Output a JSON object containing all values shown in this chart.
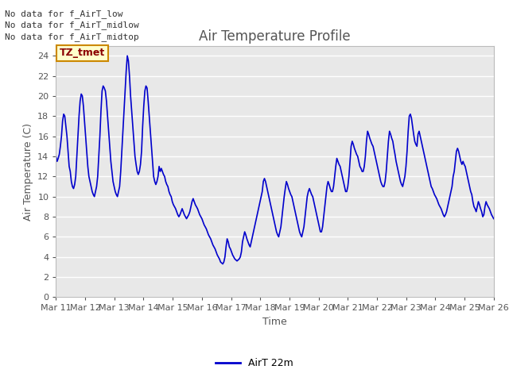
{
  "title": "Air Temperature Profile",
  "xlabel": "Time",
  "ylabel": "Air Temperature (C)",
  "line_color": "#0000cc",
  "line_label": "AirT 22m",
  "background_color": "#ffffff",
  "plot_bg_color": "#e8e8e8",
  "grid_color": "#ffffff",
  "ylim": [
    0,
    25
  ],
  "yticks": [
    0,
    2,
    4,
    6,
    8,
    10,
    12,
    14,
    16,
    18,
    20,
    22,
    24
  ],
  "annotations_text": [
    "No data for f_AirT_low",
    "No data for f_AirT_midlow",
    "No data for f_AirT_midtop"
  ],
  "tooltip_text": "TZ_tmet",
  "x_tick_labels": [
    "Mar 11",
    "Mar 12",
    "Mar 13",
    "Mar 14",
    "Mar 15",
    "Mar 16",
    "Mar 17",
    "Mar 18",
    "Mar 19",
    "Mar 20",
    "Mar 21",
    "Mar 22",
    "Mar 23",
    "Mar 24",
    "Mar 25",
    "Mar 26"
  ],
  "temperatures": [
    14.0,
    13.5,
    13.8,
    14.2,
    15.0,
    16.0,
    17.5,
    18.2,
    18.0,
    17.0,
    16.0,
    14.5,
    13.0,
    12.5,
    11.5,
    11.0,
    10.8,
    11.2,
    12.0,
    14.0,
    16.0,
    18.0,
    19.5,
    20.2,
    20.0,
    19.0,
    17.5,
    16.0,
    14.5,
    13.0,
    12.0,
    11.5,
    11.0,
    10.5,
    10.2,
    10.0,
    10.5,
    11.0,
    12.0,
    14.0,
    16.0,
    18.5,
    20.5,
    21.0,
    20.8,
    20.5,
    19.5,
    18.0,
    16.5,
    15.0,
    13.5,
    12.5,
    11.5,
    11.0,
    10.5,
    10.2,
    10.0,
    10.5,
    11.0,
    12.5,
    14.5,
    16.5,
    18.5,
    20.5,
    22.5,
    24.0,
    23.5,
    22.0,
    20.0,
    18.5,
    17.0,
    15.5,
    14.0,
    13.2,
    12.5,
    12.2,
    12.5,
    13.2,
    14.5,
    17.0,
    19.0,
    20.5,
    21.0,
    20.8,
    19.5,
    18.0,
    16.5,
    15.0,
    13.5,
    12.0,
    11.5,
    11.2,
    11.5,
    12.0,
    13.0,
    12.5,
    12.8,
    12.5,
    12.2,
    12.0,
    11.5,
    11.2,
    11.0,
    10.5,
    10.2,
    10.0,
    9.5,
    9.2,
    9.0,
    8.8,
    8.5,
    8.2,
    8.0,
    8.2,
    8.5,
    8.8,
    8.5,
    8.2,
    8.0,
    7.8,
    8.0,
    8.2,
    8.5,
    9.0,
    9.5,
    9.8,
    9.5,
    9.2,
    9.0,
    8.8,
    8.5,
    8.2,
    8.0,
    7.8,
    7.5,
    7.2,
    7.0,
    6.8,
    6.5,
    6.2,
    6.0,
    5.8,
    5.5,
    5.2,
    5.0,
    4.8,
    4.5,
    4.2,
    4.0,
    3.8,
    3.5,
    3.4,
    3.3,
    3.5,
    4.0,
    5.0,
    5.8,
    5.5,
    5.0,
    4.8,
    4.5,
    4.2,
    4.0,
    3.8,
    3.7,
    3.6,
    3.7,
    3.8,
    4.0,
    4.5,
    5.5,
    6.0,
    6.5,
    6.2,
    5.8,
    5.5,
    5.2,
    5.0,
    5.5,
    6.0,
    6.5,
    7.0,
    7.5,
    8.0,
    8.5,
    9.0,
    9.5,
    10.0,
    10.5,
    11.5,
    11.8,
    11.5,
    11.0,
    10.5,
    10.0,
    9.5,
    9.0,
    8.5,
    8.0,
    7.5,
    7.0,
    6.5,
    6.2,
    6.0,
    6.5,
    7.0,
    8.0,
    9.0,
    10.0,
    10.8,
    11.5,
    11.2,
    10.8,
    10.5,
    10.2,
    10.0,
    9.5,
    9.0,
    8.5,
    8.0,
    7.5,
    7.0,
    6.5,
    6.2,
    6.0,
    6.5,
    7.0,
    8.0,
    9.0,
    10.0,
    10.5,
    10.8,
    10.5,
    10.2,
    10.0,
    9.5,
    9.0,
    8.5,
    8.0,
    7.5,
    7.0,
    6.5,
    6.5,
    7.0,
    8.0,
    9.0,
    10.0,
    11.0,
    11.5,
    11.2,
    10.8,
    10.5,
    10.5,
    11.0,
    12.0,
    13.0,
    13.8,
    13.5,
    13.2,
    13.0,
    12.5,
    12.0,
    11.5,
    11.0,
    10.5,
    10.5,
    11.0,
    12.0,
    13.5,
    15.0,
    15.5,
    15.2,
    14.8,
    14.5,
    14.2,
    14.0,
    13.5,
    13.0,
    12.8,
    12.5,
    12.5,
    13.0,
    14.0,
    15.5,
    16.5,
    16.2,
    15.8,
    15.5,
    15.2,
    15.0,
    14.5,
    14.0,
    13.5,
    13.0,
    12.5,
    12.0,
    11.5,
    11.2,
    11.0,
    11.0,
    11.5,
    12.5,
    14.0,
    15.5,
    16.5,
    16.2,
    15.8,
    15.5,
    14.8,
    14.2,
    13.5,
    13.0,
    12.5,
    12.0,
    11.5,
    11.2,
    11.0,
    11.5,
    12.0,
    13.0,
    14.5,
    16.5,
    18.0,
    18.2,
    17.8,
    17.0,
    16.2,
    15.5,
    15.2,
    15.0,
    16.2,
    16.5,
    16.0,
    15.5,
    15.0,
    14.5,
    14.0,
    13.5,
    13.0,
    12.5,
    12.0,
    11.5,
    11.0,
    10.8,
    10.5,
    10.2,
    10.0,
    9.8,
    9.5,
    9.2,
    9.0,
    8.8,
    8.5,
    8.2,
    8.0,
    8.2,
    8.5,
    9.0,
    9.5,
    10.0,
    10.5,
    11.0,
    12.0,
    12.5,
    13.5,
    14.5,
    14.8,
    14.5,
    14.0,
    13.5,
    13.2,
    13.5,
    13.2,
    13.0,
    12.5,
    12.0,
    11.5,
    11.0,
    10.5,
    10.2,
    9.5,
    9.0,
    8.8,
    8.5,
    9.0,
    9.5,
    9.2,
    8.8,
    8.5,
    8.0,
    8.2,
    9.0,
    9.5,
    9.2,
    9.0,
    8.8,
    8.5,
    8.2,
    8.0,
    7.8
  ]
}
